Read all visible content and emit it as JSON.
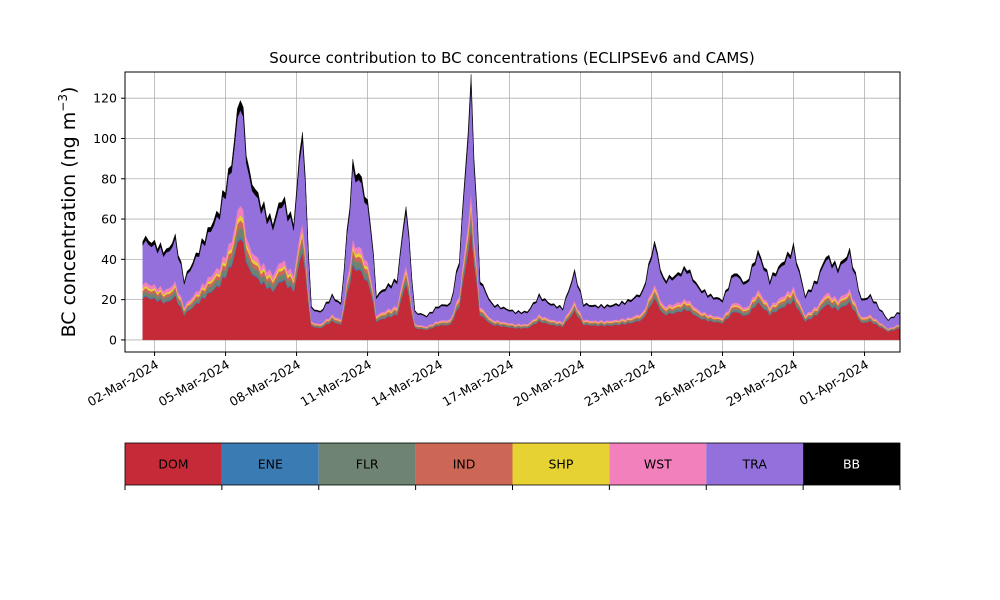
{
  "chart_data": {
    "type": "area",
    "title": "Source contribution to BC concentrations (ECLIPSEv6 and CAMS)",
    "ylabel_text": "BC concentration (ng m",
    "ylabel_exp": "−3",
    "ylabel_close": ")",
    "xlabel": "",
    "x_start": "2024-03-01T12:00",
    "x_step_hours": 3,
    "x_tick_labels": [
      "02-Mar-2024",
      "05-Mar-2024",
      "08-Mar-2024",
      "11-Mar-2024",
      "14-Mar-2024",
      "17-Mar-2024",
      "20-Mar-2024",
      "23-Mar-2024",
      "26-Mar-2024",
      "29-Mar-2024",
      "01-Apr-2024"
    ],
    "x_tick_dates": [
      "2024-03-02",
      "2024-03-05",
      "2024-03-08",
      "2024-03-11",
      "2024-03-14",
      "2024-03-17",
      "2024-03-20",
      "2024-03-23",
      "2024-03-26",
      "2024-03-29",
      "2024-04-01"
    ],
    "xlim": [
      "2024-02-29T18:00",
      "2024-04-02T12:00"
    ],
    "ylim": [
      -6,
      133
    ],
    "y_ticks": [
      0,
      20,
      40,
      60,
      80,
      100,
      120
    ],
    "grid": true,
    "total_keyframes": [
      [
        "2024-03-01T12:00",
        51
      ],
      [
        "2024-03-02T00:00",
        48
      ],
      [
        "2024-03-02T12:00",
        44
      ],
      [
        "2024-03-02T21:00",
        51
      ],
      [
        "2024-03-03T06:00",
        30
      ],
      [
        "2024-03-03T18:00",
        42
      ],
      [
        "2024-03-04T06:00",
        54
      ],
      [
        "2024-03-04T18:00",
        65
      ],
      [
        "2024-03-05T06:00",
        88
      ],
      [
        "2024-03-05T15:00",
        124
      ],
      [
        "2024-03-06T00:00",
        82
      ],
      [
        "2024-03-06T12:00",
        68
      ],
      [
        "2024-03-07T00:00",
        58
      ],
      [
        "2024-03-07T09:00",
        71
      ],
      [
        "2024-03-07T21:00",
        58
      ],
      [
        "2024-03-08T06:00",
        107
      ],
      [
        "2024-03-08T15:00",
        16
      ],
      [
        "2024-03-09T00:00",
        14
      ],
      [
        "2024-03-09T12:00",
        22
      ],
      [
        "2024-03-09T21:00",
        18
      ],
      [
        "2024-03-10T09:00",
        86
      ],
      [
        "2024-03-10T18:00",
        80
      ],
      [
        "2024-03-11T03:00",
        60
      ],
      [
        "2024-03-11T09:00",
        22
      ],
      [
        "2024-03-11T18:00",
        26
      ],
      [
        "2024-03-12T06:00",
        30
      ],
      [
        "2024-03-12T15:00",
        68
      ],
      [
        "2024-03-13T00:00",
        14
      ],
      [
        "2024-03-13T12:00",
        12
      ],
      [
        "2024-03-14T00:00",
        17
      ],
      [
        "2024-03-14T12:00",
        18
      ],
      [
        "2024-03-14T21:00",
        40
      ],
      [
        "2024-03-15T09:00",
        127
      ],
      [
        "2024-03-15T18:00",
        30
      ],
      [
        "2024-03-16T06:00",
        18
      ],
      [
        "2024-03-16T18:00",
        16
      ],
      [
        "2024-03-17T06:00",
        14
      ],
      [
        "2024-03-17T18:00",
        14
      ],
      [
        "2024-03-18T06:00",
        22
      ],
      [
        "2024-03-18T18:00",
        18
      ],
      [
        "2024-03-19T06:00",
        16
      ],
      [
        "2024-03-19T18:00",
        34
      ],
      [
        "2024-03-20T03:00",
        18
      ],
      [
        "2024-03-20T15:00",
        17
      ],
      [
        "2024-03-21T03:00",
        17
      ],
      [
        "2024-03-21T15:00",
        18
      ],
      [
        "2024-03-22T03:00",
        20
      ],
      [
        "2024-03-22T15:00",
        24
      ],
      [
        "2024-03-23T03:00",
        49
      ],
      [
        "2024-03-23T12:00",
        30
      ],
      [
        "2024-03-24T00:00",
        32
      ],
      [
        "2024-03-24T12:00",
        36
      ],
      [
        "2024-03-25T00:00",
        26
      ],
      [
        "2024-03-25T12:00",
        22
      ],
      [
        "2024-03-26T00:00",
        20
      ],
      [
        "2024-03-26T12:00",
        34
      ],
      [
        "2024-03-27T00:00",
        28
      ],
      [
        "2024-03-27T12:00",
        44
      ],
      [
        "2024-03-28T00:00",
        30
      ],
      [
        "2024-03-28T12:00",
        38
      ],
      [
        "2024-03-29T00:00",
        46
      ],
      [
        "2024-03-29T12:00",
        22
      ],
      [
        "2024-03-30T00:00",
        30
      ],
      [
        "2024-03-30T09:00",
        42
      ],
      [
        "2024-03-30T21:00",
        36
      ],
      [
        "2024-03-31T09:00",
        44
      ],
      [
        "2024-03-31T21:00",
        20
      ],
      [
        "2024-04-01T06:00",
        22
      ],
      [
        "2024-04-01T12:00",
        18
      ],
      [
        "2024-04-02T00:00",
        10
      ],
      [
        "2024-04-02T12:00",
        14
      ]
    ],
    "series": [
      {
        "name": "DOM",
        "fraction": 0.42,
        "color": "#c42a37"
      },
      {
        "name": "ENE",
        "fraction": 0.01,
        "color": "#3b7bb3"
      },
      {
        "name": "FLR",
        "fraction": 0.04,
        "color": "#6f8372"
      },
      {
        "name": "IND",
        "fraction": 0.03,
        "color": "#cc6657"
      },
      {
        "name": "SHP",
        "fraction": 0.02,
        "color": "#e6d232"
      },
      {
        "name": "WST",
        "fraction": 0.04,
        "color": "#f280bc"
      },
      {
        "name": "TRA",
        "fraction": 0.4,
        "color": "#9370db"
      },
      {
        "name": "BB",
        "fraction": 0.04,
        "color": "#000000"
      }
    ]
  },
  "legend": [
    {
      "label": "DOM",
      "color": "#c42a37",
      "text_color": "#000000"
    },
    {
      "label": "ENE",
      "color": "#3b7bb3",
      "text_color": "#000000"
    },
    {
      "label": "FLR",
      "color": "#6f8372",
      "text_color": "#000000"
    },
    {
      "label": "IND",
      "color": "#cc6657",
      "text_color": "#000000"
    },
    {
      "label": "SHP",
      "color": "#e6d232",
      "text_color": "#000000"
    },
    {
      "label": "WST",
      "color": "#f280bc",
      "text_color": "#000000"
    },
    {
      "label": "TRA",
      "color": "#9370db",
      "text_color": "#000000"
    },
    {
      "label": "BB",
      "color": "#000000",
      "text_color": "#ffffff"
    }
  ]
}
